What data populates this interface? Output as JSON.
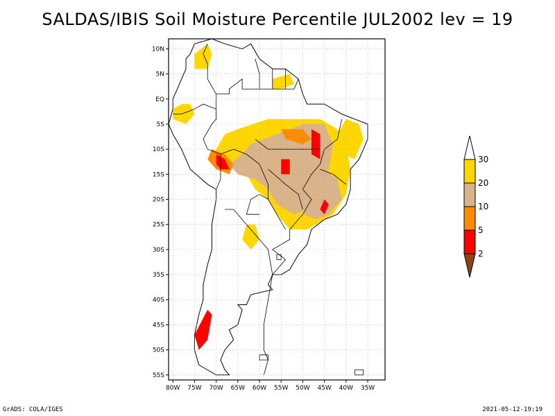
{
  "title": "SALDAS/IBIS Soil Moisture Percentile JUL2002 lev = 19",
  "footer": {
    "credit": "GrADS: COLA/IGES",
    "timestamp": "2021-05-12-19:19"
  },
  "map": {
    "lon_range": [
      -81,
      -31
    ],
    "lat_range": [
      -56,
      12
    ],
    "lat_labels": [
      {
        "lat": 10,
        "label": "10N"
      },
      {
        "lat": 5,
        "label": "5N"
      },
      {
        "lat": 0,
        "label": "EQ"
      },
      {
        "lat": -5,
        "label": "5S"
      },
      {
        "lat": -10,
        "label": "10S"
      },
      {
        "lat": -15,
        "label": "15S"
      },
      {
        "lat": -20,
        "label": "20S"
      },
      {
        "lat": -25,
        "label": "25S"
      },
      {
        "lat": -30,
        "label": "30S"
      },
      {
        "lat": -35,
        "label": "35S"
      },
      {
        "lat": -40,
        "label": "40S"
      },
      {
        "lat": -45,
        "label": "45S"
      },
      {
        "lat": -50,
        "label": "50S"
      },
      {
        "lat": -55,
        "label": "55S"
      }
    ],
    "lon_labels": [
      {
        "lon": -80,
        "label": "80W"
      },
      {
        "lon": -75,
        "label": "75W"
      },
      {
        "lon": -70,
        "label": "70W"
      },
      {
        "lon": -65,
        "label": "65W"
      },
      {
        "lon": -60,
        "label": "60W"
      },
      {
        "lon": -55,
        "label": "55W"
      },
      {
        "lon": -50,
        "label": "50W"
      },
      {
        "lon": -45,
        "label": "45W"
      },
      {
        "lon": -40,
        "label": "40W"
      },
      {
        "lon": -35,
        "label": "35W"
      }
    ],
    "colors": {
      "yellow": "#ffd700",
      "tan": "#d9b48a",
      "orange": "#ff8c00",
      "red": "#ff0000",
      "brown": "#8b4513",
      "line": "#000000",
      "grid": "#999999"
    },
    "regions": [
      {
        "level": "yellow",
        "points": [
          [
            -65,
            -6
          ],
          [
            -58,
            -4
          ],
          [
            -52,
            -4
          ],
          [
            -46,
            -4
          ],
          [
            -42,
            -6
          ],
          [
            -40,
            -9
          ],
          [
            -39,
            -14
          ],
          [
            -40,
            -19
          ],
          [
            -43,
            -23
          ],
          [
            -47,
            -25
          ],
          [
            -49,
            -26
          ],
          [
            -53,
            -26
          ],
          [
            -56,
            -23
          ],
          [
            -58,
            -20
          ],
          [
            -61,
            -18
          ],
          [
            -63,
            -15
          ],
          [
            -66,
            -14
          ],
          [
            -69,
            -13
          ],
          [
            -70,
            -10
          ],
          [
            -68,
            -7
          ]
        ]
      },
      {
        "level": "yellow",
        "points": [
          [
            -40,
            -4
          ],
          [
            -37,
            -5
          ],
          [
            -36,
            -8
          ],
          [
            -38,
            -12
          ],
          [
            -41,
            -11
          ],
          [
            -42,
            -7
          ]
        ]
      },
      {
        "level": "yellow",
        "points": [
          [
            -78,
            -1
          ],
          [
            -76,
            -1
          ],
          [
            -75,
            -3
          ],
          [
            -77,
            -5
          ],
          [
            -80,
            -4
          ],
          [
            -80,
            -2
          ]
        ]
      },
      {
        "level": "yellow",
        "points": [
          [
            -75,
            9
          ],
          [
            -72,
            11
          ],
          [
            -71,
            9
          ],
          [
            -72,
            6
          ],
          [
            -75,
            6
          ]
        ]
      },
      {
        "level": "yellow",
        "points": [
          [
            -57,
            4
          ],
          [
            -53,
            5
          ],
          [
            -52,
            3
          ],
          [
            -55,
            2
          ],
          [
            -57,
            2
          ]
        ]
      },
      {
        "level": "yellow",
        "points": [
          [
            -63,
            -25
          ],
          [
            -61,
            -25
          ],
          [
            -60,
            -28
          ],
          [
            -62,
            -30
          ],
          [
            -64,
            -28
          ]
        ]
      },
      {
        "level": "tan",
        "points": [
          [
            -62,
            -9
          ],
          [
            -56,
            -7
          ],
          [
            -50,
            -5
          ],
          [
            -45,
            -5
          ],
          [
            -43,
            -9
          ],
          [
            -44,
            -14
          ],
          [
            -46,
            -18
          ],
          [
            -49,
            -22
          ],
          [
            -52,
            -23
          ],
          [
            -56,
            -21
          ],
          [
            -58,
            -18
          ],
          [
            -61,
            -16
          ],
          [
            -65,
            -15
          ],
          [
            -67,
            -13
          ],
          [
            -64,
            -11
          ]
        ]
      },
      {
        "level": "tan",
        "points": [
          [
            -45,
            -14
          ],
          [
            -42,
            -16
          ],
          [
            -41,
            -20
          ],
          [
            -44,
            -23
          ],
          [
            -47,
            -24
          ],
          [
            -50,
            -23
          ],
          [
            -48,
            -19
          ],
          [
            -46,
            -16
          ]
        ]
      },
      {
        "level": "orange",
        "points": [
          [
            -71,
            -10
          ],
          [
            -68,
            -11
          ],
          [
            -66,
            -13
          ],
          [
            -67,
            -15
          ],
          [
            -70,
            -14
          ],
          [
            -72,
            -12
          ]
        ]
      },
      {
        "level": "orange",
        "points": [
          [
            -55,
            -6
          ],
          [
            -50,
            -6
          ],
          [
            -48,
            -8
          ],
          [
            -50,
            -9
          ],
          [
            -54,
            -8
          ]
        ]
      },
      {
        "level": "red",
        "points": [
          [
            -70,
            -11
          ],
          [
            -68,
            -12
          ],
          [
            -67,
            -14
          ],
          [
            -69,
            -14
          ],
          [
            -70,
            -13
          ]
        ]
      },
      {
        "level": "red",
        "points": [
          [
            -48,
            -6
          ],
          [
            -46,
            -7
          ],
          [
            -46,
            -12
          ],
          [
            -48,
            -11
          ]
        ]
      },
      {
        "level": "red",
        "points": [
          [
            -55,
            -12
          ],
          [
            -53,
            -12
          ],
          [
            -53,
            -15
          ],
          [
            -55,
            -15
          ]
        ]
      },
      {
        "level": "red",
        "points": [
          [
            -45,
            -20
          ],
          [
            -44,
            -21
          ],
          [
            -45,
            -23
          ],
          [
            -46,
            -22
          ]
        ]
      },
      {
        "level": "red",
        "points": [
          [
            -72,
            -42
          ],
          [
            -71,
            -43
          ],
          [
            -72,
            -48
          ],
          [
            -74,
            -50
          ],
          [
            -75,
            -47
          ]
        ]
      }
    ],
    "continent": [
      [
        -77,
        8
      ],
      [
        -76,
        9
      ],
      [
        -75,
        11
      ],
      [
        -71,
        12
      ],
      [
        -68,
        11
      ],
      [
        -64,
        10
      ],
      [
        -62,
        11
      ],
      [
        -60,
        8
      ],
      [
        -57,
        6
      ],
      [
        -54,
        6
      ],
      [
        -51,
        4
      ],
      [
        -50,
        1
      ],
      [
        -49,
        -1
      ],
      [
        -45,
        -1
      ],
      [
        -41,
        -3
      ],
      [
        -38,
        -4
      ],
      [
        -35,
        -5
      ],
      [
        -35,
        -8
      ],
      [
        -37,
        -12
      ],
      [
        -39,
        -14
      ],
      [
        -39,
        -18
      ],
      [
        -40,
        -21
      ],
      [
        -42,
        -23
      ],
      [
        -45,
        -24
      ],
      [
        -48,
        -26
      ],
      [
        -49,
        -29
      ],
      [
        -51,
        -31
      ],
      [
        -53,
        -34
      ],
      [
        -55,
        -35
      ],
      [
        -57,
        -35
      ],
      [
        -58,
        -37
      ],
      [
        -57,
        -38
      ],
      [
        -62,
        -39
      ],
      [
        -63,
        -41
      ],
      [
        -65,
        -41
      ],
      [
        -64,
        -42
      ],
      [
        -65,
        -45
      ],
      [
        -67,
        -46
      ],
      [
        -66,
        -48
      ],
      [
        -68,
        -50
      ],
      [
        -69,
        -52
      ],
      [
        -68,
        -54
      ],
      [
        -67,
        -55
      ],
      [
        -70,
        -55
      ],
      [
        -72,
        -54
      ],
      [
        -74,
        -53
      ],
      [
        -75,
        -50
      ],
      [
        -75,
        -47
      ],
      [
        -74,
        -43
      ],
      [
        -73,
        -40
      ],
      [
        -73,
        -37
      ],
      [
        -72,
        -33
      ],
      [
        -71,
        -30
      ],
      [
        -71,
        -25
      ],
      [
        -70,
        -20
      ],
      [
        -70,
        -18
      ],
      [
        -72,
        -17
      ],
      [
        -76,
        -14
      ],
      [
        -78,
        -10
      ],
      [
        -80,
        -7
      ],
      [
        -81,
        -5
      ],
      [
        -80,
        -2
      ],
      [
        -80,
        0
      ],
      [
        -79,
        2
      ],
      [
        -78,
        4
      ],
      [
        -77,
        6
      ]
    ],
    "borders": [
      [
        [
          -59,
          -55
        ],
        [
          -58,
          -52
        ],
        [
          -59,
          -50
        ],
        [
          -59,
          -45
        ],
        [
          -58,
          -40
        ],
        [
          -57,
          -35
        ],
        [
          -58,
          -30
        ],
        [
          -60,
          -28
        ],
        [
          -63,
          -25
        ],
        [
          -66,
          -22
        ],
        [
          -68,
          -22
        ]
      ],
      [
        [
          -57,
          -35
        ],
        [
          -54,
          -32
        ],
        [
          -57,
          -30
        ],
        [
          -53,
          -28
        ],
        [
          -53,
          -26
        ]
      ],
      [
        [
          -54,
          -26
        ],
        [
          -56,
          -23
        ],
        [
          -58,
          -20
        ],
        [
          -60,
          -19
        ],
        [
          -62,
          -20
        ],
        [
          -63,
          -23
        ],
        [
          -60,
          -23
        ]
      ],
      [
        [
          -70,
          -18
        ],
        [
          -69,
          -16
        ],
        [
          -69,
          -11
        ],
        [
          -66,
          -10
        ],
        [
          -63,
          -11
        ],
        [
          -60,
          -13
        ],
        [
          -58,
          -17
        ],
        [
          -58,
          -20
        ]
      ],
      [
        [
          -69,
          -11
        ],
        [
          -72,
          -10
        ],
        [
          -73,
          -8
        ],
        [
          -71,
          -5
        ],
        [
          -70,
          -4
        ],
        [
          -70,
          -2
        ],
        [
          -73,
          -1
        ],
        [
          -75,
          -2
        ],
        [
          -78,
          -3
        ],
        [
          -80,
          -3
        ]
      ],
      [
        [
          -70,
          -4
        ],
        [
          -70,
          1
        ],
        [
          -67,
          1
        ],
        [
          -67,
          2
        ],
        [
          -64,
          4
        ],
        [
          -64,
          2
        ],
        [
          -60,
          2
        ],
        [
          -60,
          5
        ],
        [
          -61,
          8
        ]
      ],
      [
        [
          -70,
          1
        ],
        [
          -72,
          4
        ],
        [
          -72,
          7
        ],
        [
          -73,
          9
        ],
        [
          -72,
          11
        ]
      ],
      [
        [
          -60,
          2
        ],
        [
          -58,
          2
        ],
        [
          -56,
          2
        ],
        [
          -54,
          2
        ],
        [
          -52,
          2
        ],
        [
          -51,
          4
        ]
      ],
      [
        [
          -57,
          2
        ],
        [
          -57,
          6
        ]
      ],
      [
        [
          -54,
          2
        ],
        [
          -54,
          6
        ]
      ],
      [
        [
          -53,
          -26
        ],
        [
          -50,
          -23
        ],
        [
          -48,
          -20
        ],
        [
          -50,
          -18
        ],
        [
          -48,
          -15
        ],
        [
          -46,
          -13
        ],
        [
          -45,
          -10
        ],
        [
          -42,
          -8
        ],
        [
          -41,
          -4
        ]
      ],
      [
        [
          -61,
          -8
        ],
        [
          -58,
          -10
        ],
        [
          -55,
          -10
        ],
        [
          -50,
          -10
        ],
        [
          -46,
          -10
        ]
      ],
      [
        [
          -58,
          -14
        ],
        [
          -54,
          -17
        ],
        [
          -51,
          -19
        ],
        [
          -50,
          -22
        ]
      ],
      [
        [
          -46,
          -14
        ],
        [
          -43,
          -15
        ],
        [
          -40,
          -17
        ]
      ]
    ],
    "islands": [
      [
        [
          -60,
          -51
        ],
        [
          -58,
          -51
        ],
        [
          -58,
          -52
        ],
        [
          -60,
          -52
        ]
      ],
      [
        [
          -56,
          -31
        ],
        [
          -55,
          -31
        ],
        [
          -55,
          -32
        ],
        [
          -56,
          -32
        ]
      ],
      [
        [
          -38,
          -54
        ],
        [
          -36,
          -54
        ],
        [
          -36,
          -55
        ],
        [
          -38,
          -55
        ]
      ]
    ]
  },
  "legend": {
    "type": "colorbar",
    "bins": [
      {
        "color": "#ffffff",
        "upper_label": ""
      },
      {
        "color": "#ffd700",
        "upper_label": "30"
      },
      {
        "color": "#d9b48a",
        "upper_label": "20"
      },
      {
        "color": "#ff8c00",
        "upper_label": "10"
      },
      {
        "color": "#ff0000",
        "upper_label": "5"
      },
      {
        "color": "#8b4513",
        "upper_label": "2"
      }
    ]
  }
}
